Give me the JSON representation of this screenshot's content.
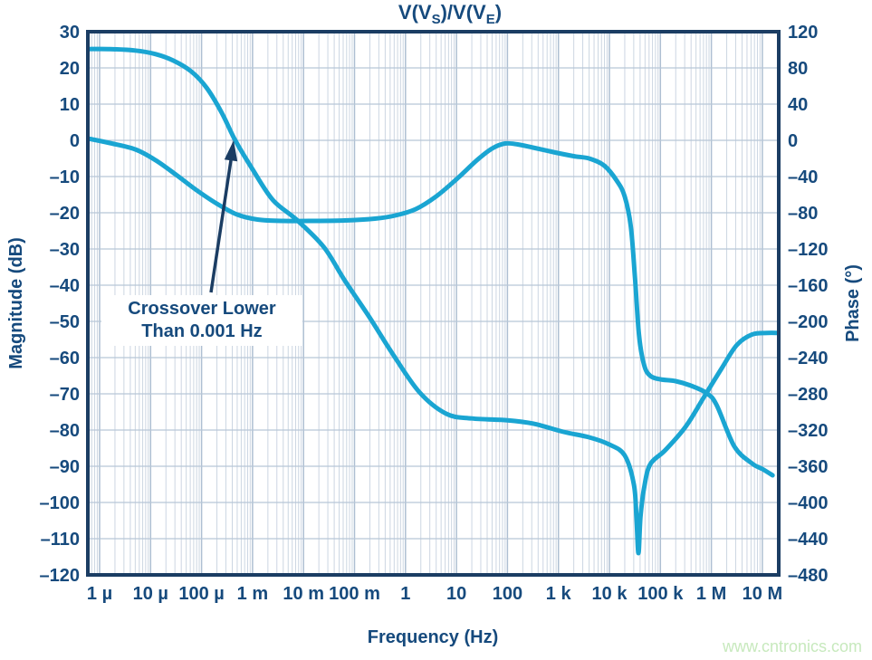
{
  "title": {
    "p1": "V(V",
    "s1": "S",
    "p2": ")/V(V",
    "s2": "E",
    "p3": ")"
  },
  "axes": {
    "x_label": "Frequency (Hz)",
    "y_left_label": "Magnitude (dB)",
    "y_right_label": "Phase (°)",
    "x_tick_labels": [
      "1 µ",
      "10 µ",
      "100 µ",
      "1 m",
      "10 m",
      "100 m",
      "1",
      "10",
      "100",
      "1 k",
      "10 k",
      "100 k",
      "1 M",
      "10 M"
    ],
    "y_left_ticks": [
      30,
      20,
      10,
      0,
      -10,
      -20,
      -30,
      -40,
      -50,
      -60,
      -70,
      -80,
      -90,
      -100,
      -110,
      -120
    ],
    "y_right_ticks": [
      120,
      80,
      40,
      0,
      -40,
      -80,
      -120,
      -160,
      -200,
      -240,
      -280,
      -320,
      -360,
      -400,
      -440,
      -480
    ]
  },
  "annotation": {
    "line1": "Crossover Lower",
    "line2": "Than 0.001 Hz"
  },
  "watermark": "www.cntronics.com",
  "colors": {
    "navy_text": "#164a7d",
    "frame": "#1b3d63",
    "curve": "#1aa5d2",
    "grid_minor": "#ccd6e2",
    "grid_major": "#aebfd2",
    "grid_horizontal": "#b7c6d7",
    "watermark": "#c7e9bd",
    "background": "#ffffff"
  },
  "chart_data": {
    "type": "line",
    "title": "V(VS)/V(VE)",
    "xlabel": "Frequency (Hz)",
    "x_scale": "log",
    "x_unit": "log10(Hz)",
    "x_decades_shown": [
      "1e-6",
      "1e-5",
      "1e-4",
      "1e-3",
      "1e-2",
      "1e-1",
      "1",
      "10",
      "100",
      "1e3",
      "1e4",
      "1e5",
      "1e6",
      "1e7"
    ],
    "ylabel_left": "Magnitude (dB)",
    "ylim_left": [
      -120,
      30
    ],
    "ytick_step_left": 10,
    "ylabel_right": "Phase (°)",
    "ylim_right": [
      -480,
      120
    ],
    "ytick_step_right": 40,
    "grid": true,
    "legend_position": "none",
    "annotation": "Crossover Lower Than 0.001 Hz (arrow points at 0 dB crossing of magnitude near 0.4 mHz)",
    "notable_features": {
      "magnitude_0dB_crossover_hz": 0.0004,
      "magnitude_notch_hz": 35000,
      "magnitude_notch_db": -114,
      "phase_steep_drop_hz": 35000
    },
    "series": [
      {
        "name": "Magnitude (dB, left axis)",
        "axis": "left",
        "points_log10f_value": [
          [
            -6.23,
            25.2
          ],
          [
            -5.8,
            25.2
          ],
          [
            -5.3,
            24.8
          ],
          [
            -4.9,
            23.8
          ],
          [
            -4.55,
            22.0
          ],
          [
            -4.2,
            19.0
          ],
          [
            -3.9,
            14.5
          ],
          [
            -3.6,
            7.5
          ],
          [
            -3.34,
            0.0
          ],
          [
            -3.0,
            -8.0
          ],
          [
            -2.6,
            -16.5
          ],
          [
            -2.13,
            -22.0
          ],
          [
            -1.6,
            -29.5
          ],
          [
            -1.2,
            -38.5
          ],
          [
            -0.7,
            -49.0
          ],
          [
            -0.26,
            -58.8
          ],
          [
            0.27,
            -69.5
          ],
          [
            0.8,
            -75.5
          ],
          [
            1.3,
            -76.8
          ],
          [
            2.0,
            -77.3
          ],
          [
            2.5,
            -78.2
          ],
          [
            3.1,
            -80.5
          ],
          [
            3.6,
            -82.0
          ],
          [
            4.0,
            -84.0
          ],
          [
            4.3,
            -87.0
          ],
          [
            4.48,
            -95.0
          ],
          [
            4.53,
            -104.0
          ],
          [
            4.57,
            -114.0
          ],
          [
            4.61,
            -104.0
          ],
          [
            4.68,
            -96.0
          ],
          [
            4.8,
            -89.5
          ],
          [
            5.1,
            -85.5
          ],
          [
            5.5,
            -79.0
          ],
          [
            5.85,
            -71.0
          ],
          [
            6.2,
            -63.0
          ],
          [
            6.5,
            -56.5
          ],
          [
            6.8,
            -53.6
          ],
          [
            7.1,
            -53.2
          ],
          [
            7.3,
            -53.2
          ]
        ]
      },
      {
        "name": "Phase (°, right axis)",
        "axis": "right",
        "points_log10f_value": [
          [
            -6.23,
            2
          ],
          [
            -5.8,
            -3
          ],
          [
            -5.3,
            -10
          ],
          [
            -4.9,
            -22
          ],
          [
            -4.5,
            -38
          ],
          [
            -4.1,
            -55
          ],
          [
            -3.7,
            -70
          ],
          [
            -3.3,
            -82
          ],
          [
            -2.9,
            -87.5
          ],
          [
            -2.4,
            -89
          ],
          [
            -1.8,
            -89
          ],
          [
            -1.2,
            -88.5
          ],
          [
            -0.6,
            -86.5
          ],
          [
            -0.2,
            -83
          ],
          [
            0.2,
            -76
          ],
          [
            0.6,
            -62
          ],
          [
            1.0,
            -43
          ],
          [
            1.4,
            -22
          ],
          [
            1.7,
            -9
          ],
          [
            1.95,
            -3.5
          ],
          [
            2.2,
            -4.5
          ],
          [
            2.5,
            -8
          ],
          [
            2.9,
            -13
          ],
          [
            3.3,
            -17.5
          ],
          [
            3.6,
            -20
          ],
          [
            3.9,
            -28
          ],
          [
            4.15,
            -45
          ],
          [
            4.3,
            -62
          ],
          [
            4.42,
            -95
          ],
          [
            4.5,
            -150
          ],
          [
            4.58,
            -215
          ],
          [
            4.68,
            -248
          ],
          [
            4.8,
            -260
          ],
          [
            5.0,
            -264
          ],
          [
            5.3,
            -266
          ],
          [
            5.6,
            -271
          ],
          [
            5.9,
            -279
          ],
          [
            6.1,
            -292
          ],
          [
            6.45,
            -338
          ],
          [
            6.8,
            -357
          ],
          [
            7.0,
            -363
          ],
          [
            7.2,
            -370
          ]
        ]
      }
    ]
  }
}
